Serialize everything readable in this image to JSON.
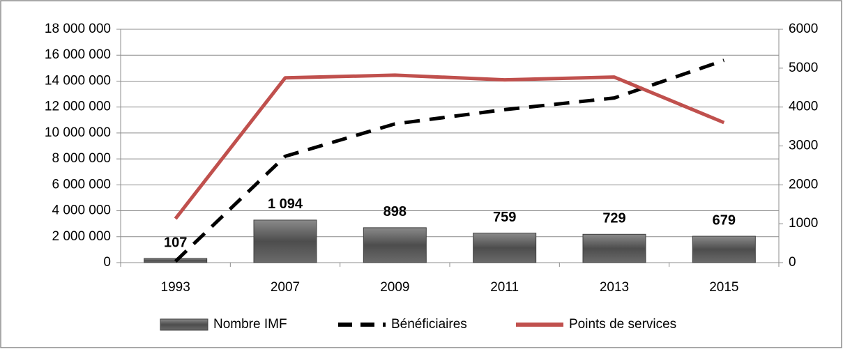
{
  "chart_data": {
    "type": "combo",
    "categories": [
      "1993",
      "2007",
      "2009",
      "2011",
      "2013",
      "2015"
    ],
    "series": [
      {
        "name": "Nombre IMF",
        "type": "bar",
        "axis": "y2",
        "color": "#595959",
        "values": [
          107,
          1094,
          898,
          759,
          729,
          679
        ],
        "value_labels": [
          "107",
          "1 094",
          "898",
          "759",
          "729",
          "679"
        ]
      },
      {
        "name": "Bénéficiaires",
        "type": "line",
        "linestyle": "dashed",
        "color": "#000000",
        "values": [
          100000,
          8200000,
          10700000,
          11800000,
          12700000,
          15600000
        ]
      },
      {
        "name": "Points de services",
        "type": "line",
        "axis": "y2",
        "color": "#c0504d",
        "values": [
          1130,
          4750,
          4820,
          4700,
          4770,
          3600
        ]
      }
    ],
    "ylim": [
      0,
      18000000
    ],
    "yticks": [
      {
        "value": 0,
        "label": "0"
      },
      {
        "value": 2000000,
        "label": "2 000 000"
      },
      {
        "value": 4000000,
        "label": "4 000 000"
      },
      {
        "value": 6000000,
        "label": "6 000 000"
      },
      {
        "value": 8000000,
        "label": "8 000 000"
      },
      {
        "value": 10000000,
        "label": "10 000 000"
      },
      {
        "value": 12000000,
        "label": "12 000 000"
      },
      {
        "value": 14000000,
        "label": "14 000 000"
      },
      {
        "value": 16000000,
        "label": "16 000 000"
      },
      {
        "value": 18000000,
        "label": "18 000 000"
      }
    ],
    "y2lim": [
      0,
      6000
    ],
    "y2ticks": [
      0,
      1000,
      2000,
      3000,
      4000,
      5000,
      6000
    ],
    "grid": true,
    "legend": "bottom"
  }
}
